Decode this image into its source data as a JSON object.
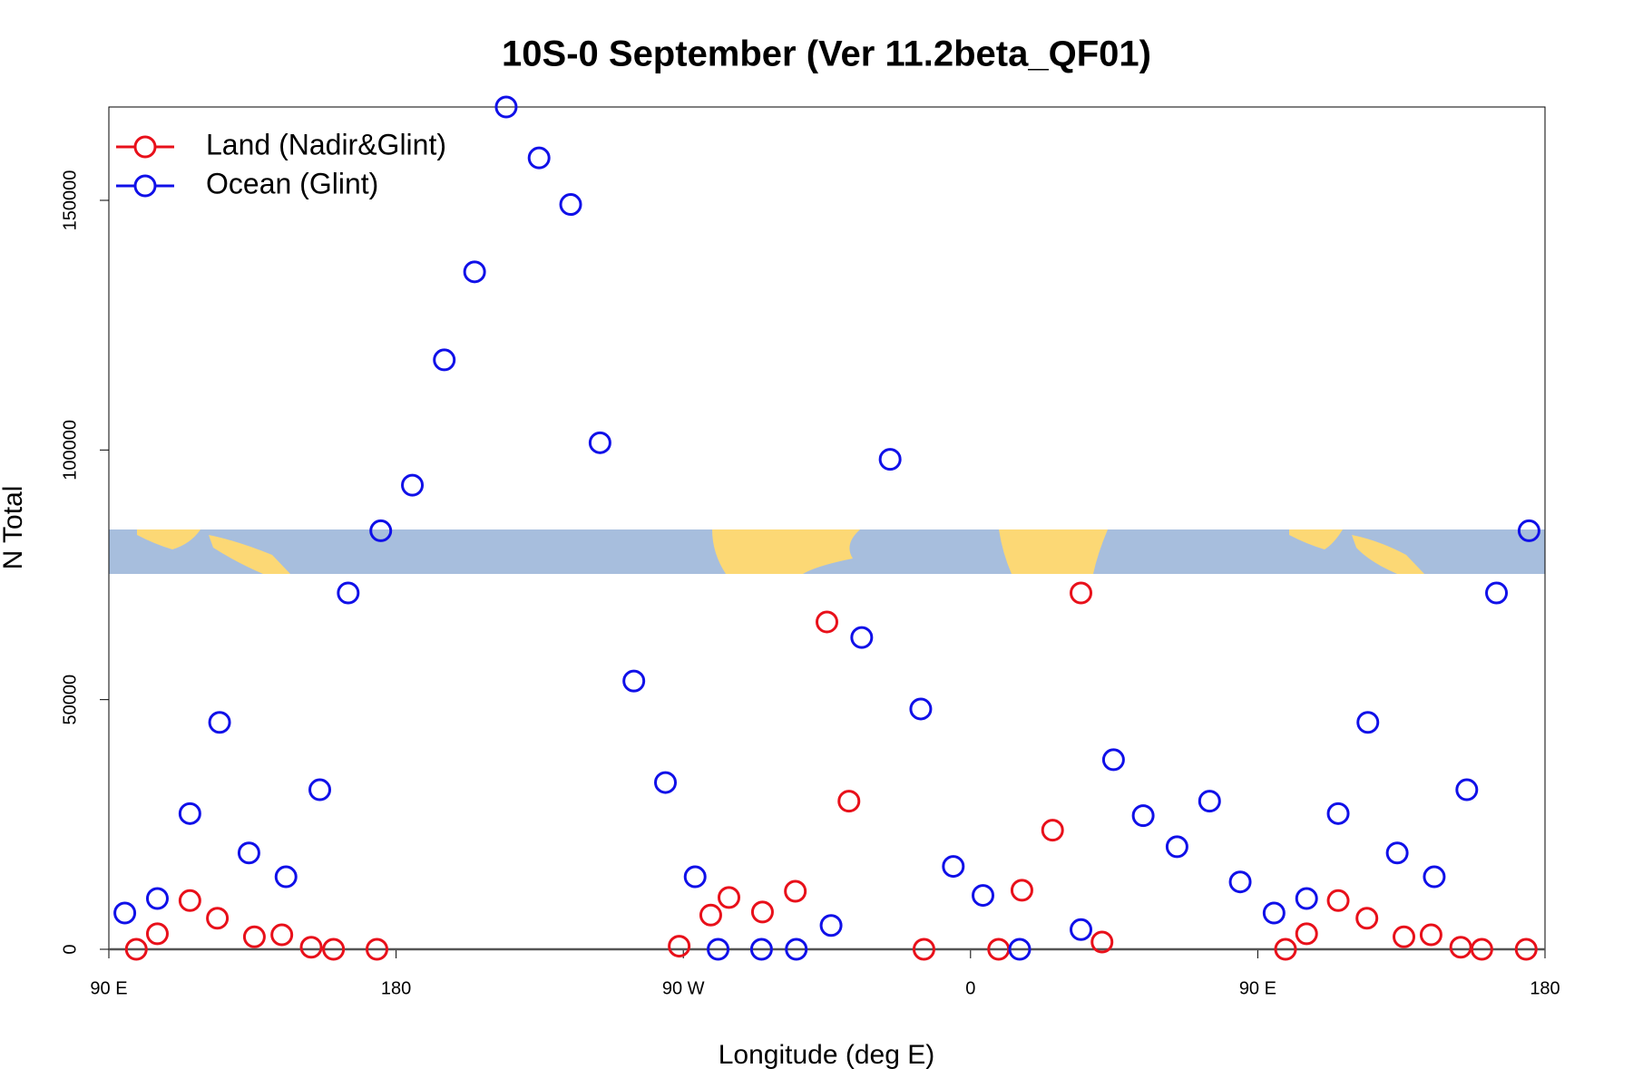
{
  "chart_data": {
    "type": "scatter",
    "title": "10S-0 September (Ver 11.2beta_QF01)",
    "x_label": "Longitude (deg E)",
    "y_label": "N Total",
    "xlim": [
      90,
      540
    ],
    "xticks": [
      {
        "value": 90,
        "label": "90 E"
      },
      180,
      {
        "value": 270,
        "label": "90 W"
      },
      {
        "value": 360,
        "label": "0"
      },
      {
        "value": 450,
        "label": "90 E"
      },
      {
        "value": 540,
        "label": "180"
      }
    ],
    "ylim": [
      0,
      168700
    ],
    "yticks": [
      0,
      50000,
      100000,
      150000
    ],
    "legend": "top-left",
    "series": [
      {
        "name": "Land (Nadir&Glint)",
        "color": "#e8101a",
        "x": [
          98.6,
          105.2,
          115.4,
          124.0,
          135.6,
          144.2,
          153.4,
          160.4,
          174.0,
          268.7,
          278.6,
          284.3,
          294.8,
          305.1,
          315.0,
          321.9,
          345.4,
          368.8,
          376.1,
          385.7,
          394.6,
          401.2,
          458.7,
          465.3,
          475.2,
          484.2,
          495.8,
          504.3,
          513.6,
          520.2,
          534.1
        ],
        "values": [
          0,
          3110,
          9750,
          6220,
          2490,
          2900,
          410,
          0,
          0,
          620,
          6850,
          10370,
          7470,
          11620,
          65560,
          29670,
          0,
          0,
          11830,
          23860,
          71370,
          1450,
          0,
          3110,
          9750,
          6220,
          2490,
          2900,
          410,
          0,
          0
        ]
      },
      {
        "name": "Ocean (Glint)",
        "color": "#1010e8",
        "x": [
          95.0,
          105.2,
          115.4,
          124.7,
          133.9,
          145.5,
          156.1,
          165.0,
          175.2,
          185.1,
          195.1,
          204.6,
          214.5,
          224.8,
          234.7,
          243.9,
          254.5,
          264.4,
          273.7,
          280.9,
          294.5,
          305.4,
          316.3,
          325.9,
          334.8,
          344.4,
          354.6,
          363.9,
          375.4,
          394.6,
          404.8,
          414.1,
          424.7,
          434.9,
          444.5,
          455.1,
          465.3,
          475.2,
          484.5,
          493.7,
          505.3,
          515.5,
          524.8,
          535.0
        ],
        "values": [
          7260,
          10170,
          27180,
          45440,
          19290,
          14520,
          31950,
          71370,
          83820,
          92950,
          118050,
          135680,
          168700,
          158500,
          149170,
          101450,
          53730,
          33400,
          14520,
          0,
          0,
          0,
          4770,
          62450,
          98130,
          48130,
          16600,
          10790,
          0,
          3940,
          37970,
          26760,
          20540,
          29670,
          13490,
          7260,
          10170,
          27180,
          45440,
          19290,
          14520,
          31950,
          71370,
          83820
        ]
      }
    ]
  }
}
